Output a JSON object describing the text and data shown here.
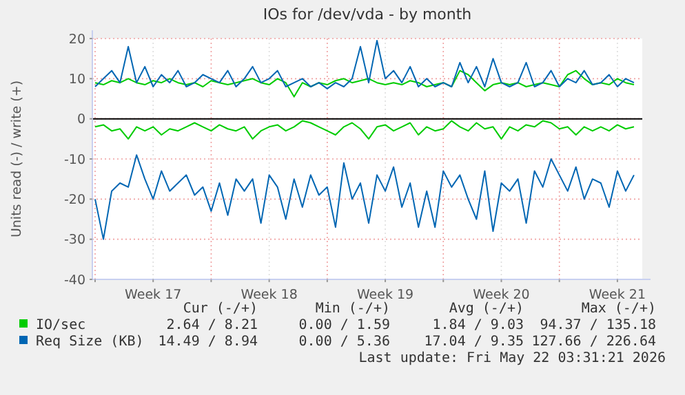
{
  "chart_data": {
    "type": "line",
    "title": "IOs for /dev/vda - by month",
    "ylabel": "Units read (-) / write (+)",
    "x": [
      "2026-04-20T00:00",
      "2026-04-20T12:00",
      "2026-04-21T00:00",
      "2026-04-21T12:00",
      "2026-04-22T00:00",
      "2026-04-22T12:00",
      "2026-04-23T00:00",
      "2026-04-23T12:00",
      "2026-04-24T00:00",
      "2026-04-24T12:00",
      "2026-04-25T00:00",
      "2026-04-25T12:00",
      "2026-04-26T00:00",
      "2026-04-26T12:00",
      "2026-04-27T00:00",
      "2026-04-27T12:00",
      "2026-04-28T00:00",
      "2026-04-28T12:00",
      "2026-04-29T00:00",
      "2026-04-29T12:00",
      "2026-04-30T00:00",
      "2026-04-30T12:00",
      "2026-05-01T00:00",
      "2026-05-01T12:00",
      "2026-05-02T00:00",
      "2026-05-02T12:00",
      "2026-05-03T00:00",
      "2026-05-03T12:00",
      "2026-05-04T00:00",
      "2026-05-04T12:00",
      "2026-05-05T00:00",
      "2026-05-05T12:00",
      "2026-05-06T00:00",
      "2026-05-06T12:00",
      "2026-05-07T00:00",
      "2026-05-07T12:00",
      "2026-05-08T00:00",
      "2026-05-08T12:00",
      "2026-05-09T00:00",
      "2026-05-09T12:00",
      "2026-05-10T00:00",
      "2026-05-10T12:00",
      "2026-05-11T00:00",
      "2026-05-11T12:00",
      "2026-05-12T00:00",
      "2026-05-12T12:00",
      "2026-05-13T00:00",
      "2026-05-13T12:00",
      "2026-05-14T00:00",
      "2026-05-14T12:00",
      "2026-05-15T00:00",
      "2026-05-15T12:00",
      "2026-05-16T00:00",
      "2026-05-16T12:00",
      "2026-05-17T00:00",
      "2026-05-17T12:00",
      "2026-05-18T00:00",
      "2026-05-18T12:00",
      "2026-05-19T00:00",
      "2026-05-19T12:00",
      "2026-05-20T00:00",
      "2026-05-20T12:00",
      "2026-05-21T00:00",
      "2026-05-21T12:00",
      "2026-05-22T00:00",
      "2026-05-22T12:00"
    ],
    "series": [
      {
        "color": "#00cc00",
        "values": [
          -2,
          -1.5,
          -3,
          -2.5,
          -5,
          -2,
          -3,
          -2,
          -4,
          -2.5,
          -3,
          -2,
          -1,
          -2,
          -3,
          -1.5,
          -2.5,
          -3,
          -2,
          -5,
          -3,
          -2,
          -1.5,
          -3,
          -2,
          -0.5,
          -1,
          -2,
          -3,
          -4,
          -2,
          -1,
          -2.5,
          -5,
          -2,
          -1.5,
          -3,
          -2,
          -1,
          -4,
          -2,
          -3,
          -2.5,
          -0.5,
          -2,
          -3,
          -1,
          -2.5,
          -2,
          -5,
          -2,
          -3,
          -1.5,
          -2,
          -0.5,
          -1,
          -2.5,
          -2,
          -4,
          -2,
          -3,
          -2,
          -3,
          -1.5,
          -2.5,
          -2
        ]
      },
      {
        "name": "IO/sec",
        "color": "#00cc00",
        "values": [
          9,
          8.5,
          9.5,
          9,
          10,
          9,
          8.5,
          9.5,
          9,
          10,
          9,
          8.5,
          9,
          8,
          9.5,
          9,
          8.5,
          9,
          9.5,
          10,
          9,
          8.5,
          10,
          9,
          5.5,
          9,
          8,
          9,
          8.5,
          9.5,
          10,
          9,
          9.5,
          10,
          9,
          8.5,
          9,
          8.5,
          9.5,
          9,
          8,
          8.5,
          9,
          8,
          12,
          11,
          9,
          7,
          8.5,
          9,
          8.5,
          9,
          8,
          8.5,
          9,
          8.5,
          8,
          11,
          12,
          10,
          8.5,
          9,
          8.5,
          10,
          9,
          8.5
        ]
      },
      {
        "color": "#0066b3",
        "values": [
          -20,
          -30,
          -18,
          -16,
          -17,
          -9,
          -15,
          -20,
          -13,
          -18,
          -16,
          -14,
          -19,
          -17,
          -23,
          -16,
          -24,
          -15,
          -18,
          -15,
          -26,
          -14,
          -17,
          -25,
          -15,
          -22,
          -14,
          -19,
          -17,
          -27,
          -11,
          -20,
          -16,
          -26,
          -14,
          -18,
          -12,
          -22,
          -16,
          -27,
          -18,
          -27,
          -13,
          -17,
          -14,
          -20,
          -25,
          -13,
          -28,
          -16,
          -18,
          -15,
          -26,
          -13,
          -17,
          -10,
          -14,
          -18,
          -12,
          -20,
          -15,
          -16,
          -22,
          -13,
          -18,
          -14
        ]
      },
      {
        "name": "Req Size (KB)",
        "color": "#0066b3",
        "values": [
          8,
          10,
          12,
          9,
          18,
          9,
          13,
          8,
          11,
          9,
          12,
          8,
          9,
          11,
          10,
          9,
          12,
          8,
          10,
          13,
          9,
          10,
          12,
          8,
          9,
          10,
          8,
          9,
          7.5,
          9,
          8,
          10,
          18,
          9,
          19.5,
          10,
          12,
          9,
          13,
          8,
          10,
          8,
          9,
          8,
          14,
          9,
          13,
          8,
          15,
          9,
          8,
          9,
          14,
          8,
          9,
          12,
          8,
          10,
          9,
          12,
          8.5,
          9,
          11,
          8,
          10,
          9
        ]
      }
    ],
    "xlim": [
      "2026-04-19T20:00",
      "2026-05-23T00:00"
    ],
    "xticks": [
      {
        "value": "2026-04-20",
        "label": null
      },
      {
        "value": "2026-04-23T12:00",
        "label": "Week 17"
      },
      {
        "value": "2026-04-27",
        "label": null
      },
      {
        "value": "2026-04-30T12:00",
        "label": "Week 18"
      },
      {
        "value": "2026-05-04",
        "label": null
      },
      {
        "value": "2026-05-07T12:00",
        "label": "Week 19"
      },
      {
        "value": "2026-05-11",
        "label": null
      },
      {
        "value": "2026-05-14T12:00",
        "label": "Week 20"
      },
      {
        "value": "2026-05-18",
        "label": null
      },
      {
        "value": "2026-05-21T12:00",
        "label": "Week 21"
      }
    ],
    "ylim": [
      -40,
      20
    ],
    "yticks": [
      -40,
      -30,
      -20,
      -10,
      0,
      10,
      20
    ],
    "ref_lines": [
      {
        "axis": "y",
        "value": 0,
        "color": "#000000"
      }
    ],
    "grid": true,
    "legend": "bottom",
    "marker": "none",
    "line_style": "solid",
    "annotations": [
      "Cur (-/+)",
      "Min (-/+)",
      "Avg (-/+)",
      "Max (-/+)",
      "2.64 / 8.21",
      "0.00 / 1.59",
      "1.84 / 9.03",
      "94.37 / 135.18",
      "14.49 / 8.94",
      "0.00 / 5.36",
      "17.04 / 9.35",
      "127.66 / 226.64",
      "Last update: Fri May 22 03:31:21 2026"
    ]
  }
}
